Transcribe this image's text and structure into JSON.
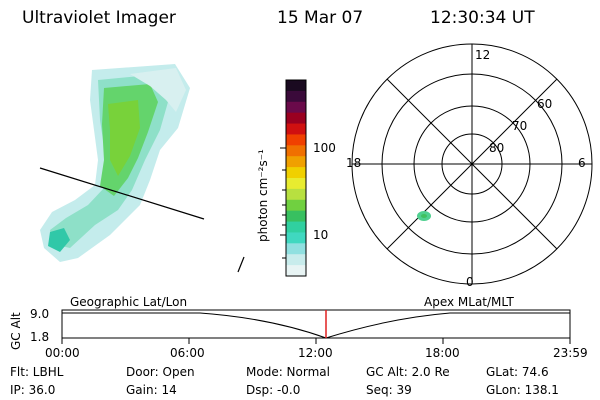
{
  "header": {
    "instrument": "Ultraviolet Imager",
    "date": "15 Mar 07",
    "time": "12:30:34 UT"
  },
  "colorbar": {
    "label": "photon cm⁻²s⁻¹",
    "ticks": [
      "100",
      "10"
    ],
    "colors": [
      "#1a0a20",
      "#3a0a3a",
      "#6a0a4a",
      "#9a0020",
      "#d01010",
      "#f04000",
      "#f07000",
      "#f0a000",
      "#f0d000",
      "#e8ec30",
      "#b8e040",
      "#70d040",
      "#38c060",
      "#30d0a0",
      "#40d8c0",
      "#90e0e0",
      "#c8ecec",
      "#e8f4f4"
    ]
  },
  "polar": {
    "mlt_labels": {
      "top": "12",
      "left": "18",
      "right": "6",
      "bottom": "0"
    },
    "lat_labels": [
      "60",
      "70",
      "80"
    ]
  },
  "timeline": {
    "left_label": "Geographic Lat/Lon",
    "right_label": "Apex MLat/MLT",
    "axis_title": "GC Alt",
    "y_ticks": [
      "9.0",
      "1.8"
    ],
    "x_ticks": [
      "00:00",
      "06:00",
      "12:00",
      "18:00",
      "23:59"
    ],
    "marker_time": "12:30",
    "marker_color": "#e02020"
  },
  "info": {
    "flt": "Flt: LBHL",
    "door": "Door: Open",
    "mode": "Mode: Normal",
    "gc_alt": "GC Alt: 2.0 Re",
    "glat": "GLat:  74.6",
    "ip": "IP: 36.0",
    "gain": "Gain: 14",
    "dsp": "Dsp:   -0.0",
    "seq": "Seq: 39",
    "glon": "GLon: 138.1"
  }
}
